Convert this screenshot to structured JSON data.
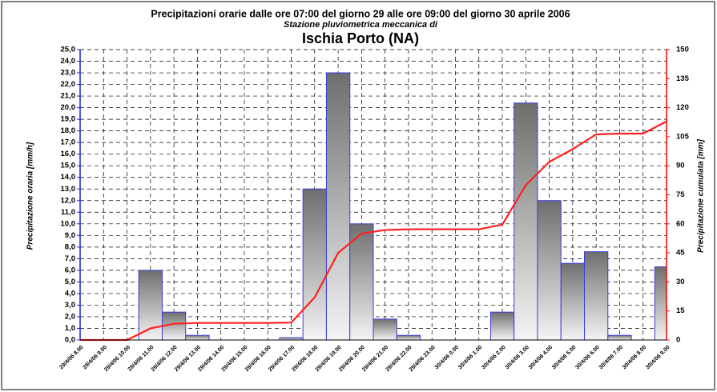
{
  "chart_data": {
    "type": "bar",
    "title": "Precipitazioni orarie dalle ore 07:00 del giorno 29 alle ore 09:00 del giorno 30 aprile 2006",
    "subtitle": "Stazione pluviometrica meccanica di",
    "station": "Ischia Porto (NA)",
    "ylabel": "Precipitazione oraria [mm/h]",
    "y2label": "Precipitazione cumulata [mm]",
    "categories": [
      "29/4/06 8.00",
      "29/4/06 9.00",
      "29/4/06 10.00",
      "29/4/06 11.00",
      "29/4/06 12.00",
      "29/4/06 13.00",
      "29/4/06 14.00",
      "29/4/06 15.00",
      "29/4/06 16.00",
      "29/4/06 17.00",
      "29/4/06 18.00",
      "29/4/06 19.00",
      "29/4/06 20.00",
      "29/4/06 21.00",
      "29/4/06 22.00",
      "29/4/06 23.00",
      "30/4/06 0.00",
      "30/4/06 1.00",
      "30/4/06 2.00",
      "30/4/06 3.00",
      "30/4/06 4.00",
      "30/4/06 5.00",
      "30/4/06 6.00",
      "30/4/06 7.00",
      "30/4/06 8.00",
      "30/4/06 9.00"
    ],
    "series": [
      {
        "type": "bar",
        "color": "#3b3bdc",
        "values": [
          0,
          0,
          0,
          6,
          2.4,
          0.4,
          0,
          0,
          0,
          0.2,
          13,
          23,
          10,
          1.8,
          0.4,
          0,
          0,
          0,
          2.4,
          20.4,
          12,
          6.6,
          7.6,
          0.4,
          0,
          6.3
        ]
      },
      {
        "type": "line",
        "axis": "y2",
        "color": "#ff2020",
        "values": [
          0,
          0,
          0,
          6,
          8.4,
          8.8,
          8.8,
          8.8,
          8.8,
          9,
          22,
          45,
          55,
          56.8,
          57.2,
          57.2,
          57.2,
          57.2,
          59.6,
          80,
          92,
          98.6,
          106.2,
          106.6,
          106.6,
          112.9
        ]
      }
    ],
    "ylim": [
      0,
      25
    ],
    "yticks": [
      {
        "value": 0,
        "label": "0,0"
      },
      {
        "value": 1,
        "label": "1,0"
      },
      {
        "value": 2,
        "label": "2,0"
      },
      {
        "value": 3,
        "label": "3,0"
      },
      {
        "value": 4,
        "label": "4,0"
      },
      {
        "value": 5,
        "label": "5,0"
      },
      {
        "value": 6,
        "label": "6,0"
      },
      {
        "value": 7,
        "label": "7,0"
      },
      {
        "value": 8,
        "label": "8,0"
      },
      {
        "value": 9,
        "label": "9,0"
      },
      {
        "value": 10,
        "label": "10,0"
      },
      {
        "value": 11,
        "label": "11,0"
      },
      {
        "value": 12,
        "label": "12,0"
      },
      {
        "value": 13,
        "label": "13,0"
      },
      {
        "value": 14,
        "label": "14,0"
      },
      {
        "value": 15,
        "label": "15,0"
      },
      {
        "value": 16,
        "label": "16,0"
      },
      {
        "value": 17,
        "label": "17,0"
      },
      {
        "value": 18,
        "label": "18,0"
      },
      {
        "value": 19,
        "label": "19,0"
      },
      {
        "value": 20,
        "label": "20,0"
      },
      {
        "value": 21,
        "label": "21,0"
      },
      {
        "value": 22,
        "label": "22,0"
      },
      {
        "value": 23,
        "label": "23,0"
      },
      {
        "value": 24,
        "label": "24,0"
      },
      {
        "value": 25,
        "label": "25,0"
      }
    ],
    "y2lim": [
      0,
      150
    ],
    "y2ticks": [
      0,
      15,
      30,
      45,
      60,
      75,
      90,
      105,
      120,
      135,
      150
    ],
    "y_color": "#2020e0",
    "y2_color": "#ff0000",
    "grid": true
  }
}
